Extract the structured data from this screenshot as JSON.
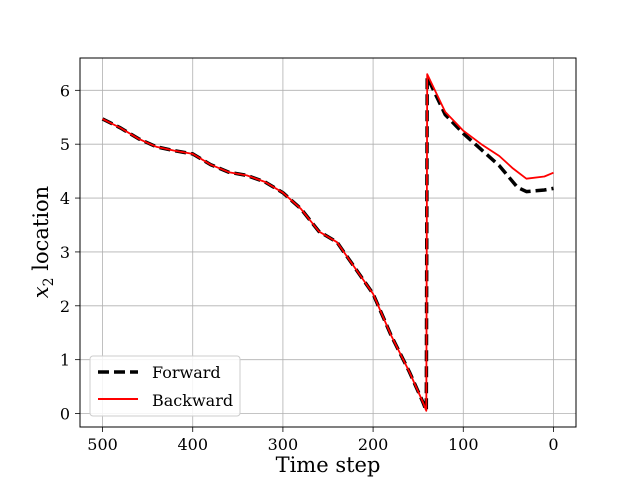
{
  "chart_data": {
    "type": "line",
    "title": "",
    "xlabel": "Time step",
    "ylabel_var": "x",
    "ylabel_sub": "2",
    "ylabel_rest": " location",
    "xlim": [
      525,
      -25
    ],
    "ylim": [
      -0.25,
      6.6
    ],
    "x_ticks": [
      500,
      400,
      300,
      200,
      100,
      0
    ],
    "y_ticks": [
      0,
      1,
      2,
      3,
      4,
      5,
      6
    ],
    "grid": true,
    "legend_position": "lower-left",
    "series": [
      {
        "name": "Forward",
        "color": "#000000",
        "style": "dashed",
        "points": [
          [
            500,
            5.47
          ],
          [
            480,
            5.3
          ],
          [
            460,
            5.1
          ],
          [
            440,
            4.95
          ],
          [
            420,
            4.88
          ],
          [
            400,
            4.82
          ],
          [
            380,
            4.62
          ],
          [
            360,
            4.48
          ],
          [
            340,
            4.42
          ],
          [
            320,
            4.3
          ],
          [
            300,
            4.1
          ],
          [
            280,
            3.8
          ],
          [
            260,
            3.38
          ],
          [
            240,
            3.18
          ],
          [
            220,
            2.7
          ],
          [
            200,
            2.22
          ],
          [
            180,
            1.45
          ],
          [
            160,
            0.78
          ],
          [
            145,
            0.22
          ],
          [
            141,
            0.05
          ],
          [
            140,
            6.25
          ],
          [
            130,
            5.9
          ],
          [
            120,
            5.55
          ],
          [
            100,
            5.2
          ],
          [
            80,
            4.9
          ],
          [
            60,
            4.6
          ],
          [
            40,
            4.2
          ],
          [
            30,
            4.12
          ],
          [
            10,
            4.15
          ],
          [
            0,
            4.18
          ]
        ]
      },
      {
        "name": "Backward",
        "color": "#ff0000",
        "style": "solid",
        "points": [
          [
            500,
            5.47
          ],
          [
            480,
            5.3
          ],
          [
            460,
            5.1
          ],
          [
            440,
            4.95
          ],
          [
            420,
            4.88
          ],
          [
            400,
            4.82
          ],
          [
            380,
            4.62
          ],
          [
            360,
            4.48
          ],
          [
            340,
            4.42
          ],
          [
            320,
            4.3
          ],
          [
            300,
            4.1
          ],
          [
            280,
            3.8
          ],
          [
            260,
            3.38
          ],
          [
            240,
            3.18
          ],
          [
            220,
            2.7
          ],
          [
            200,
            2.22
          ],
          [
            180,
            1.45
          ],
          [
            160,
            0.78
          ],
          [
            145,
            0.22
          ],
          [
            141,
            0.05
          ],
          [
            140,
            6.3
          ],
          [
            130,
            5.95
          ],
          [
            120,
            5.6
          ],
          [
            100,
            5.25
          ],
          [
            80,
            5.0
          ],
          [
            60,
            4.78
          ],
          [
            45,
            4.55
          ],
          [
            30,
            4.36
          ],
          [
            10,
            4.4
          ],
          [
            0,
            4.47
          ]
        ]
      }
    ]
  }
}
